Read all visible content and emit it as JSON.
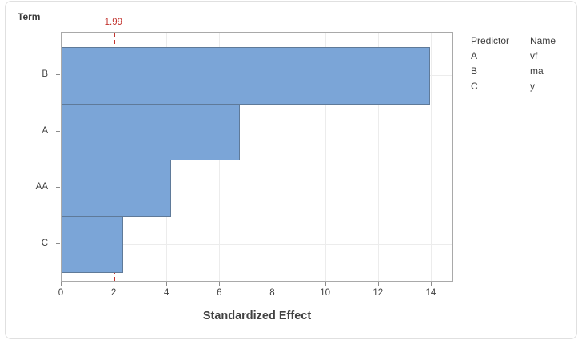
{
  "term_axis_label": "Term",
  "chart_data": {
    "type": "bar",
    "orientation": "horizontal",
    "title": "",
    "categories": [
      "B",
      "A",
      "AA",
      "C"
    ],
    "values": [
      13.9,
      6.7,
      4.1,
      2.3
    ],
    "xlabel": "Standardized Effect",
    "ylabel": "Term",
    "xlim": [
      0,
      14.85
    ],
    "x_ticks": [
      "0",
      "2",
      "4",
      "6",
      "8",
      "10",
      "12",
      "14"
    ],
    "x_tick_values": [
      0,
      2,
      4,
      6,
      8,
      10,
      12,
      14
    ],
    "grid": true,
    "legend_position": "top-right",
    "reference_line": {
      "value": 1.99,
      "label": "1.99"
    },
    "colors": {
      "bar_fill": "#7ba5d7",
      "bar_border": "#5f7a99",
      "reference": "#c2342f",
      "gridline": "#ececec",
      "frame": "#a9a9a9"
    }
  },
  "legend": {
    "headers": [
      "Predictor",
      "Name"
    ],
    "rows": [
      {
        "predictor": "A",
        "name": "vf"
      },
      {
        "predictor": "B",
        "name": "ma"
      },
      {
        "predictor": "C",
        "name": "y"
      }
    ]
  }
}
